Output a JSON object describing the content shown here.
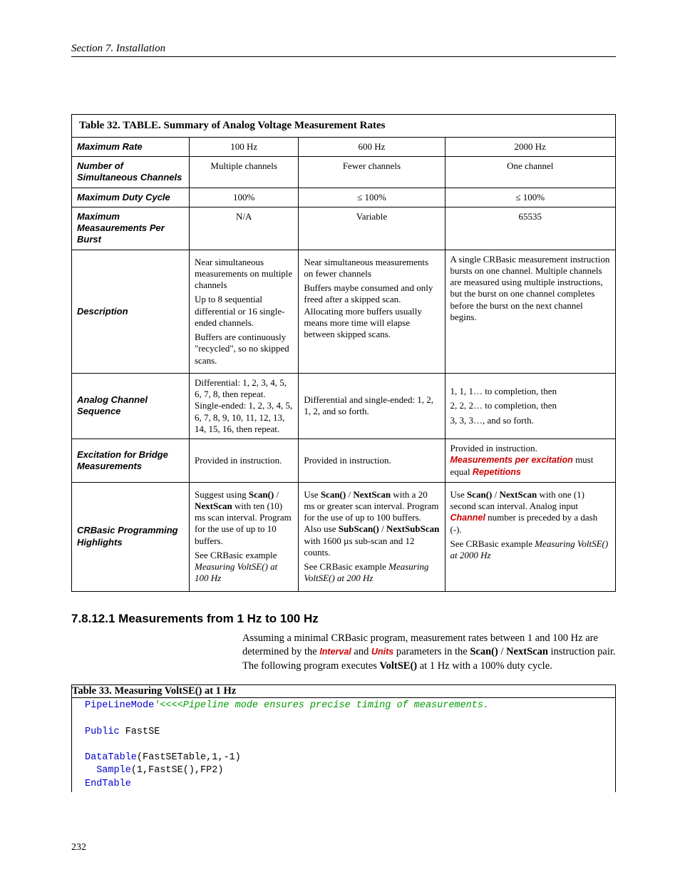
{
  "header": {
    "section": "Section 7.  Installation"
  },
  "table32": {
    "title": "Table 32. TABLE. Summary of Analog Voltage Measurement Rates",
    "cols": [
      "100 Hz",
      "600 Hz",
      "2000 Hz"
    ],
    "rows": {
      "max_rate": {
        "label": "Maximum Rate"
      },
      "channels": {
        "label": "Number of Simultaneous Channels",
        "c1": "Multiple channels",
        "c2": "Fewer channels",
        "c3": "One channel"
      },
      "duty": {
        "label": "Maximum Duty Cycle",
        "c1": "100%",
        "c2": "≤ 100%",
        "c3": "≤ 100%"
      },
      "burst": {
        "label": "Maximum Measaurements Per Burst",
        "c1": "N/A",
        "c2": "Variable",
        "c3": "65535"
      },
      "desc": {
        "label": "Description",
        "c1a": "Near simultaneous measurements on multiple channels",
        "c1b": "Up to 8 sequential differential or 16 single-ended channels.",
        "c1c": "Buffers are continuously \"recycled\", so no skipped scans.",
        "c2a": "Near simultaneous measurements on fewer channels",
        "c2b": "Buffers maybe consumed and only freed after a skipped scan. Allocating more buffers usually means more time will elapse between skipped scans.",
        "c3": "A single CRBasic measurement instruction bursts on one channel. Multiple channels are measured using multiple instructions, but the burst on one channel completes before the burst on the next channel begins."
      },
      "seq": {
        "label": "Analog Channel Sequence",
        "c1": "Differential: 1, 2, 3, 4, 5, 6, 7, 8, then repeat.\nSingle-ended: 1, 2, 3, 4, 5, 6, 7, 8, 9, 10, 11, 12, 13, 14, 15, 16, then repeat.",
        "c2": "Differential and single-ended: 1, 2, 1, 2, and so forth.",
        "c3a": "1, 1, 1… to completion, then",
        "c3b": "2, 2, 2… to completion, then",
        "c3c": "3, 3, 3…, and so forth."
      },
      "excite": {
        "label": "Excitation for Bridge Measurements",
        "c1": "Provided in instruction.",
        "c2": "Provided in instruction.",
        "c3a": "Provided in instruction.",
        "c3b": "Measurements per excitation",
        "c3c": " must equal ",
        "c3d": "Repetitions"
      },
      "prog": {
        "label": "CRBasic Programming Highlights",
        "c1_pre": "Suggest using ",
        "c1_b1": "Scan()",
        "c1_mid1": " / ",
        "c1_b2": "NextScan",
        "c1_mid2": " with ten (10) ms scan interval.  Program for the use of up to 10 buffers.",
        "c1_p2a": "See CRBasic example ",
        "c1_p2b": "Measuring VoltSE() at 100 Hz",
        "c2_pre": "Use ",
        "c2_b1": "Scan()",
        "c2_mid1": " / ",
        "c2_b2": "NextScan",
        "c2_mid2": " with a 20 ms or greater scan interval. Program for the use of up to 100 buffers.  Also use ",
        "c2_b3": "SubScan()",
        "c2_mid3": " / ",
        "c2_b4": "NextSubScan",
        "c2_mid4": " with 1600 µs sub-scan and 12 counts.",
        "c2_p2a": "See CRBasic example ",
        "c2_p2b": "Measuring VoltSE() at 200 Hz",
        "c3_pre": "Use ",
        "c3_b1": "Scan()",
        "c3_mid1": " / ",
        "c3_b2": "NextScan",
        "c3_mid2": " with one (1) second scan interval. Analog input ",
        "c3_em": "Channel",
        "c3_mid3": " number is preceded by a dash (-).",
        "c3_p2a": "See CRBasic example ",
        "c3_p2b": "Measuring VoltSE() at 2000 Hz"
      }
    }
  },
  "sub": {
    "title": "7.8.12.1 Measurements from 1 Hz to 100 Hz",
    "body_a": "Assuming a minimal CRBasic program, measurement rates between 1 and 100 Hz are determined by the ",
    "em1": "Interval",
    "body_b": " and ",
    "em2": "Units",
    "body_c": " parameters in the ",
    "b1": "Scan()",
    "body_d": " / ",
    "b2": "NextScan",
    "body_e": " instruction pair.  The following program executes ",
    "b3": "VoltSE()",
    "body_f": " at 1 Hz with a 100% duty cycle."
  },
  "table33": {
    "title": "Table 33. Measuring VoltSE() at 1 Hz",
    "code": {
      "l1a": "PipeLineMode",
      "l1b": "'<<<<Pipeline mode ensures precise timing of measurements.",
      "l3a": "Public",
      "l3b": " FastSE",
      "l5a": "DataTable",
      "l5b": "(FastSETable,1,-1)",
      "l6a": "Sample",
      "l6b": "(1,FastSE(),FP2)",
      "l7": "EndTable"
    }
  },
  "page": "232"
}
